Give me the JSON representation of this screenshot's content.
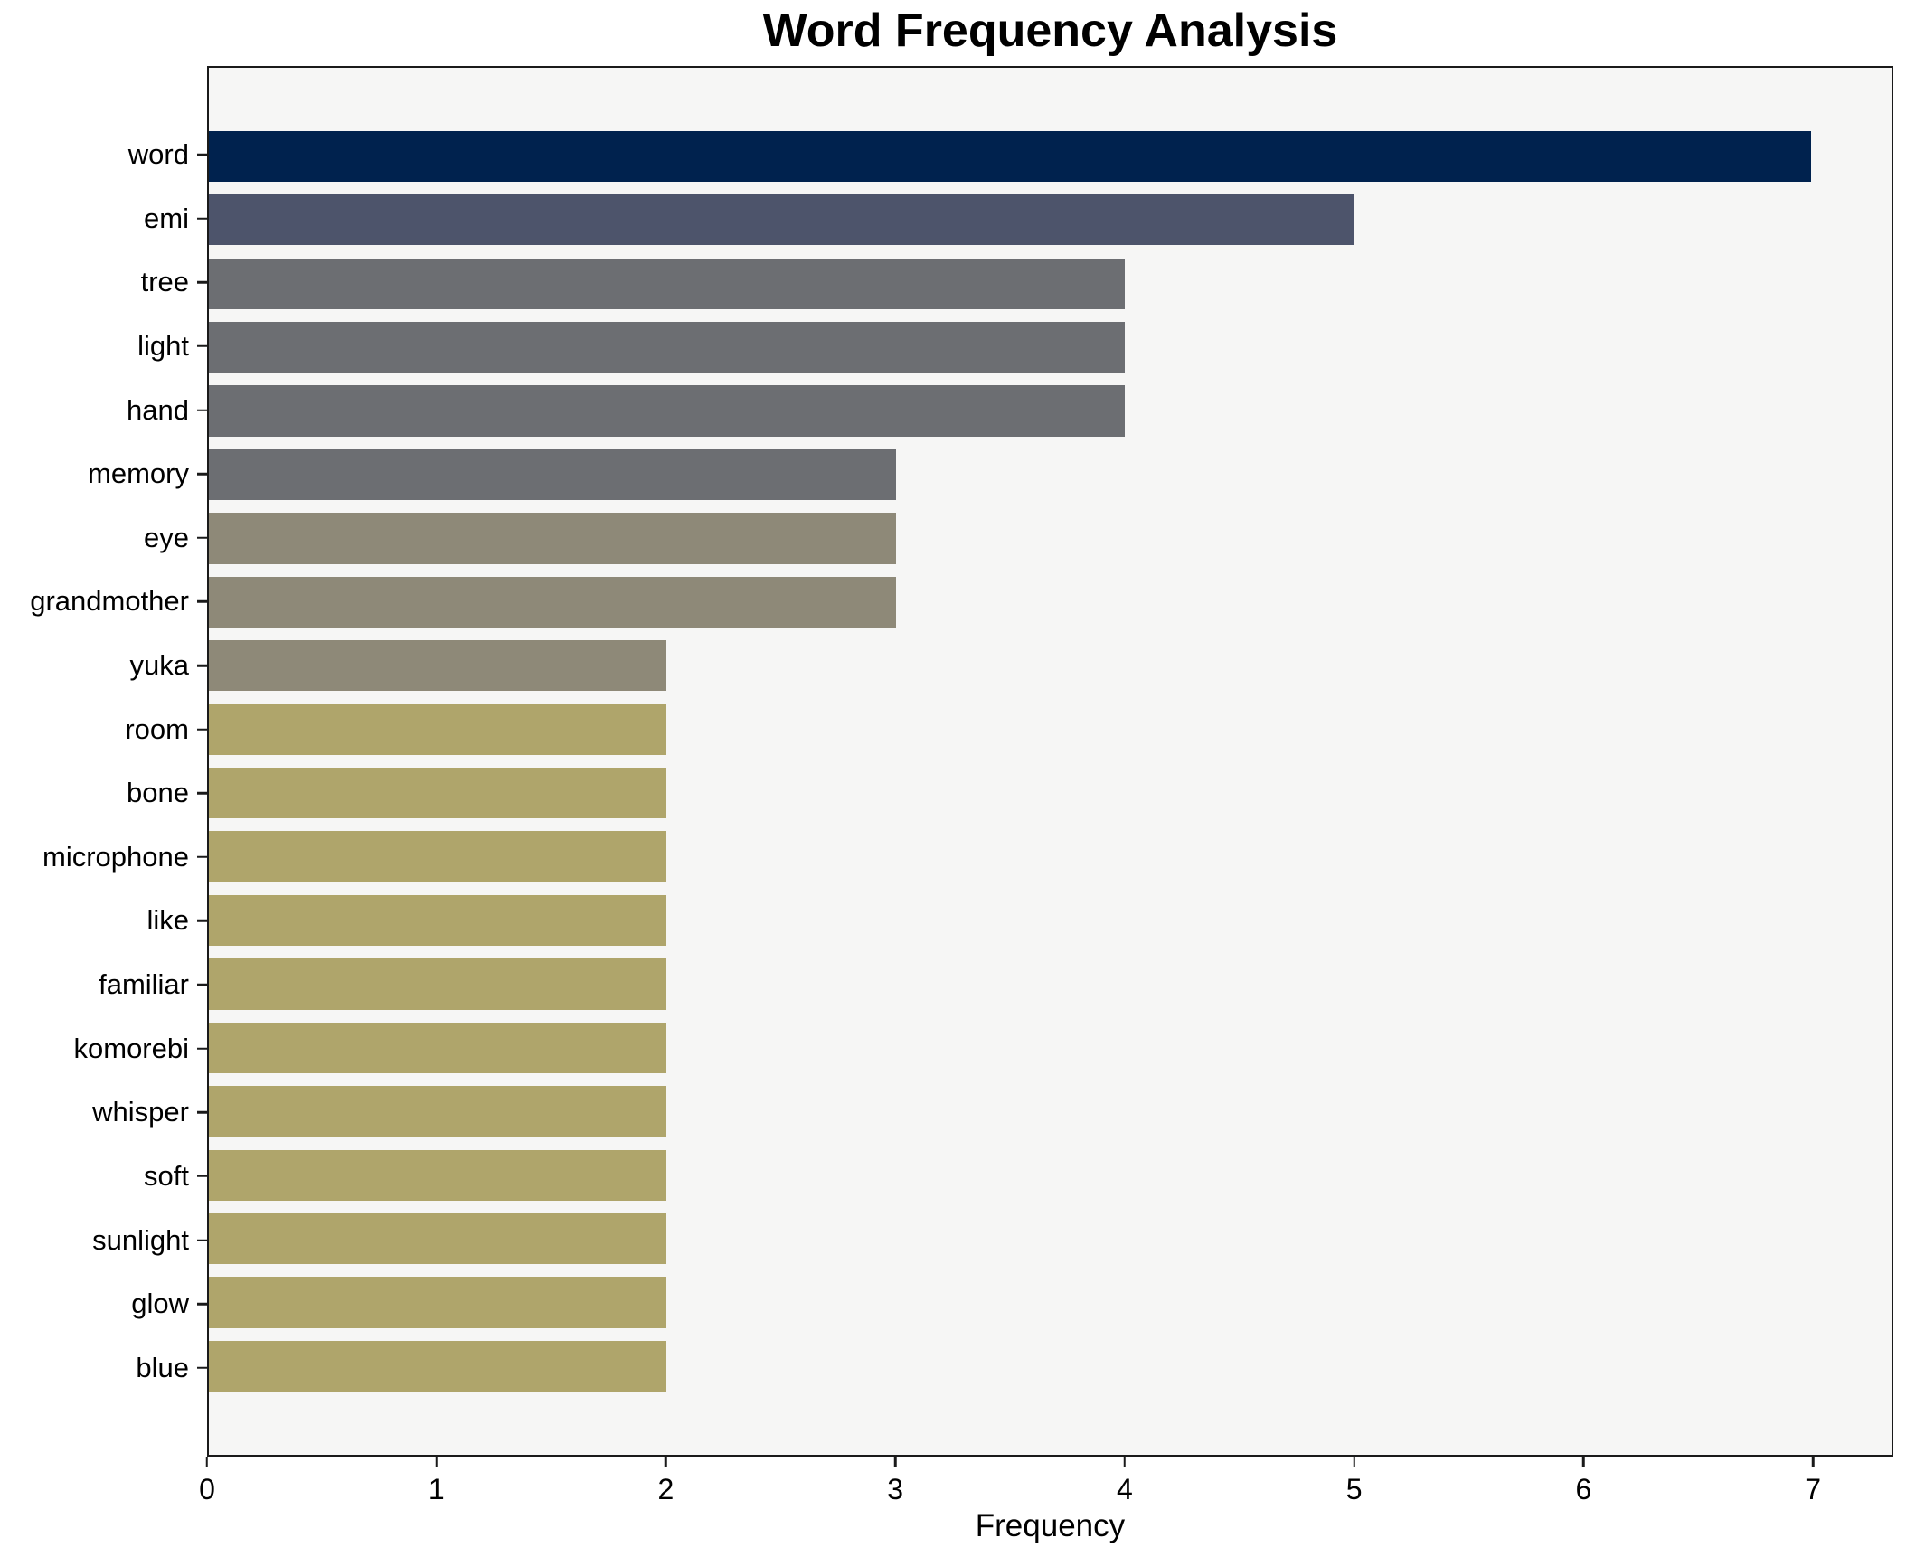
{
  "chart_data": {
    "type": "bar",
    "orientation": "horizontal",
    "title": "Word Frequency Analysis",
    "xlabel": "Frequency",
    "ylabel": "",
    "categories": [
      "word",
      "emi",
      "tree",
      "light",
      "hand",
      "memory",
      "eye",
      "grandmother",
      "yuka",
      "room",
      "bone",
      "microphone",
      "like",
      "familiar",
      "komorebi",
      "whisper",
      "soft",
      "sunlight",
      "glow",
      "blue"
    ],
    "values": [
      7,
      5,
      4,
      4,
      4,
      3,
      3,
      3,
      2,
      2,
      2,
      2,
      2,
      2,
      2,
      2,
      2,
      2,
      2,
      2
    ],
    "bar_colors": [
      "#00224e",
      "#4d546b",
      "#6c6e72",
      "#6c6e72",
      "#6c6e72",
      "#6c6e72",
      "#8e8978",
      "#8e8978",
      "#8e8978",
      "#afa56b",
      "#afa56b",
      "#afa56b",
      "#afa56b",
      "#afa56b",
      "#afa56b",
      "#afa56b",
      "#afa56b",
      "#afa56b",
      "#afa56b",
      "#afa56b"
    ],
    "xlim": [
      0,
      7.35
    ],
    "xticks": [
      0,
      1,
      2,
      3,
      4,
      5,
      6,
      7
    ],
    "grid": false,
    "legend": false,
    "plot_background": "#f6f6f5",
    "figure_background": "#ffffff",
    "spine_color": "#1a1a1a",
    "text_color": "#000000"
  }
}
